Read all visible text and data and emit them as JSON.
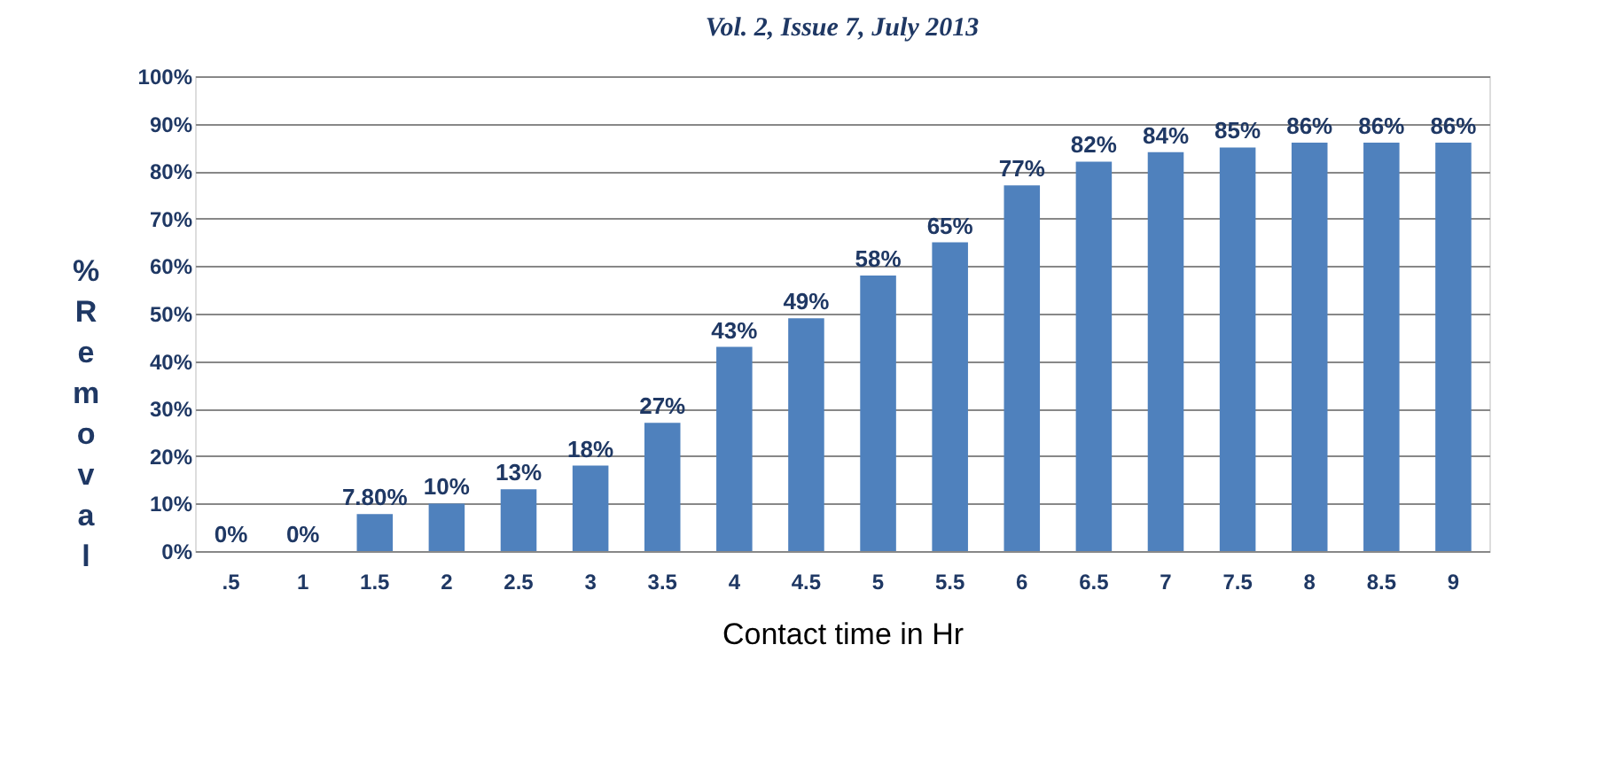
{
  "chart_data": {
    "type": "bar",
    "annotations": [
      "Vol. 2, Issue 7, July 2013"
    ],
    "categories": [
      ".5",
      "1",
      "1.5",
      "2",
      "2.5",
      "3",
      "3.5",
      "4",
      "4.5",
      "5",
      "5.5",
      "6",
      "6.5",
      "7",
      "7.5",
      "8",
      "8.5",
      "9"
    ],
    "values": [
      0,
      0,
      7.8,
      10,
      13,
      18,
      27,
      43,
      49,
      58,
      65,
      77,
      82,
      84,
      85,
      86,
      86,
      86
    ],
    "value_labels": [
      "0%",
      "0%",
      "7.80%",
      "10%",
      "13%",
      "18%",
      "27%",
      "43%",
      "49%",
      "58%",
      "65%",
      "77%",
      "82%",
      "84%",
      "85%",
      "86%",
      "86%",
      "86%"
    ],
    "color": "#4f81bd",
    "xlabel": "Contact time in Hr",
    "ylabel": "%Removal",
    "ylim": [
      0,
      100
    ],
    "yticks": [
      {
        "value": 0,
        "label": "0%"
      },
      {
        "value": 10,
        "label": "10%"
      },
      {
        "value": 20,
        "label": "20%"
      },
      {
        "value": 30,
        "label": "30%"
      },
      {
        "value": 40,
        "label": "40%"
      },
      {
        "value": 50,
        "label": "50%"
      },
      {
        "value": 60,
        "label": "60%"
      },
      {
        "value": 70,
        "label": "70%"
      },
      {
        "value": 80,
        "label": "80%"
      },
      {
        "value": 90,
        "label": "90%"
      },
      {
        "value": 100,
        "label": "100%"
      }
    ],
    "grid": "y"
  }
}
